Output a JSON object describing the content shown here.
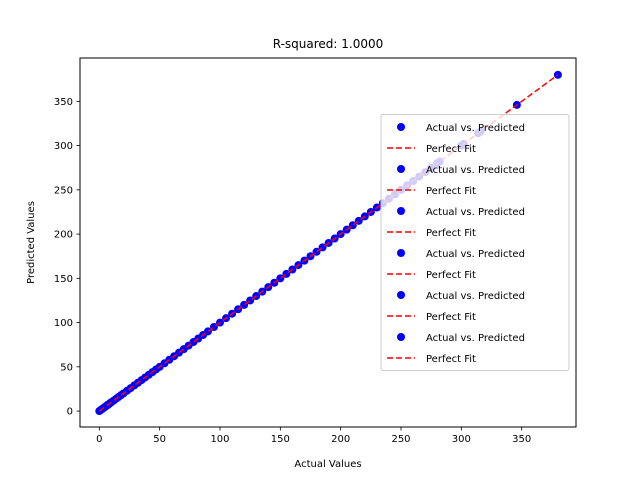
{
  "chart_data": {
    "type": "scatter",
    "title": "R-squared: 1.0000",
    "xlabel": "Actual Values",
    "ylabel": "Predicted Values",
    "xlim": [
      -16,
      395
    ],
    "ylim": [
      -18,
      399
    ],
    "x_ticks": [
      0,
      50,
      100,
      150,
      200,
      250,
      300,
      350
    ],
    "y_ticks": [
      0,
      50,
      100,
      150,
      200,
      250,
      300,
      350
    ],
    "x_tick_labels": [
      "0",
      "50",
      "100",
      "150",
      "200",
      "250",
      "300",
      "350"
    ],
    "y_tick_labels": [
      "0",
      "50",
      "100",
      "150",
      "200",
      "250",
      "300",
      "350"
    ],
    "grid": false,
    "legend_position": "center-right",
    "series": [
      {
        "name": "Actual vs. Predicted",
        "kind": "scatter",
        "color": "#0000ff",
        "x": [
          0,
          1,
          2,
          3,
          4,
          5,
          6,
          7,
          8,
          9,
          10,
          12,
          14,
          16,
          18,
          20,
          23,
          26,
          29,
          32,
          35,
          38,
          41,
          44,
          47,
          50,
          54,
          58,
          62,
          66,
          70,
          74,
          78,
          82,
          86,
          90,
          95,
          100,
          105,
          110,
          115,
          120,
          125,
          130,
          135,
          140,
          145,
          150,
          155,
          160,
          165,
          170,
          175,
          180,
          185,
          190,
          195,
          200,
          205,
          210,
          215,
          220,
          225,
          230,
          235,
          240,
          245,
          250,
          255,
          260,
          265,
          270,
          275,
          280,
          282,
          300,
          302,
          314,
          316,
          346,
          380
        ],
        "y": [
          0,
          1,
          2,
          3,
          4,
          5,
          6,
          7,
          8,
          9,
          10,
          12,
          14,
          16,
          18,
          20,
          23,
          26,
          29,
          32,
          35,
          38,
          41,
          44,
          47,
          50,
          54,
          58,
          62,
          66,
          70,
          74,
          78,
          82,
          86,
          90,
          95,
          100,
          105,
          110,
          115,
          120,
          125,
          130,
          135,
          140,
          145,
          150,
          155,
          160,
          165,
          170,
          175,
          180,
          185,
          190,
          195,
          200,
          205,
          210,
          215,
          220,
          225,
          230,
          235,
          240,
          245,
          250,
          255,
          260,
          265,
          270,
          275,
          280,
          282,
          300,
          302,
          314,
          316,
          346,
          380
        ]
      },
      {
        "name": "Perfect Fit",
        "kind": "line",
        "color": "#ff0000",
        "x": [
          0,
          380
        ],
        "y": [
          0,
          380
        ]
      }
    ],
    "legend": [
      {
        "label": "Actual vs. Predicted",
        "kind": "scatter",
        "color": "#0000ff"
      },
      {
        "label": "Perfect Fit",
        "kind": "line",
        "color": "#ff0000"
      },
      {
        "label": "Actual vs. Predicted",
        "kind": "scatter",
        "color": "#0000ff"
      },
      {
        "label": "Perfect Fit",
        "kind": "line",
        "color": "#ff0000"
      },
      {
        "label": "Actual vs. Predicted",
        "kind": "scatter",
        "color": "#0000ff"
      },
      {
        "label": "Perfect Fit",
        "kind": "line",
        "color": "#ff0000"
      },
      {
        "label": "Actual vs. Predicted",
        "kind": "scatter",
        "color": "#0000ff"
      },
      {
        "label": "Perfect Fit",
        "kind": "line",
        "color": "#ff0000"
      },
      {
        "label": "Actual vs. Predicted",
        "kind": "scatter",
        "color": "#0000ff"
      },
      {
        "label": "Perfect Fit",
        "kind": "line",
        "color": "#ff0000"
      },
      {
        "label": "Actual vs. Predicted",
        "kind": "scatter",
        "color": "#0000ff"
      },
      {
        "label": "Perfect Fit",
        "kind": "line",
        "color": "#ff0000"
      }
    ]
  }
}
